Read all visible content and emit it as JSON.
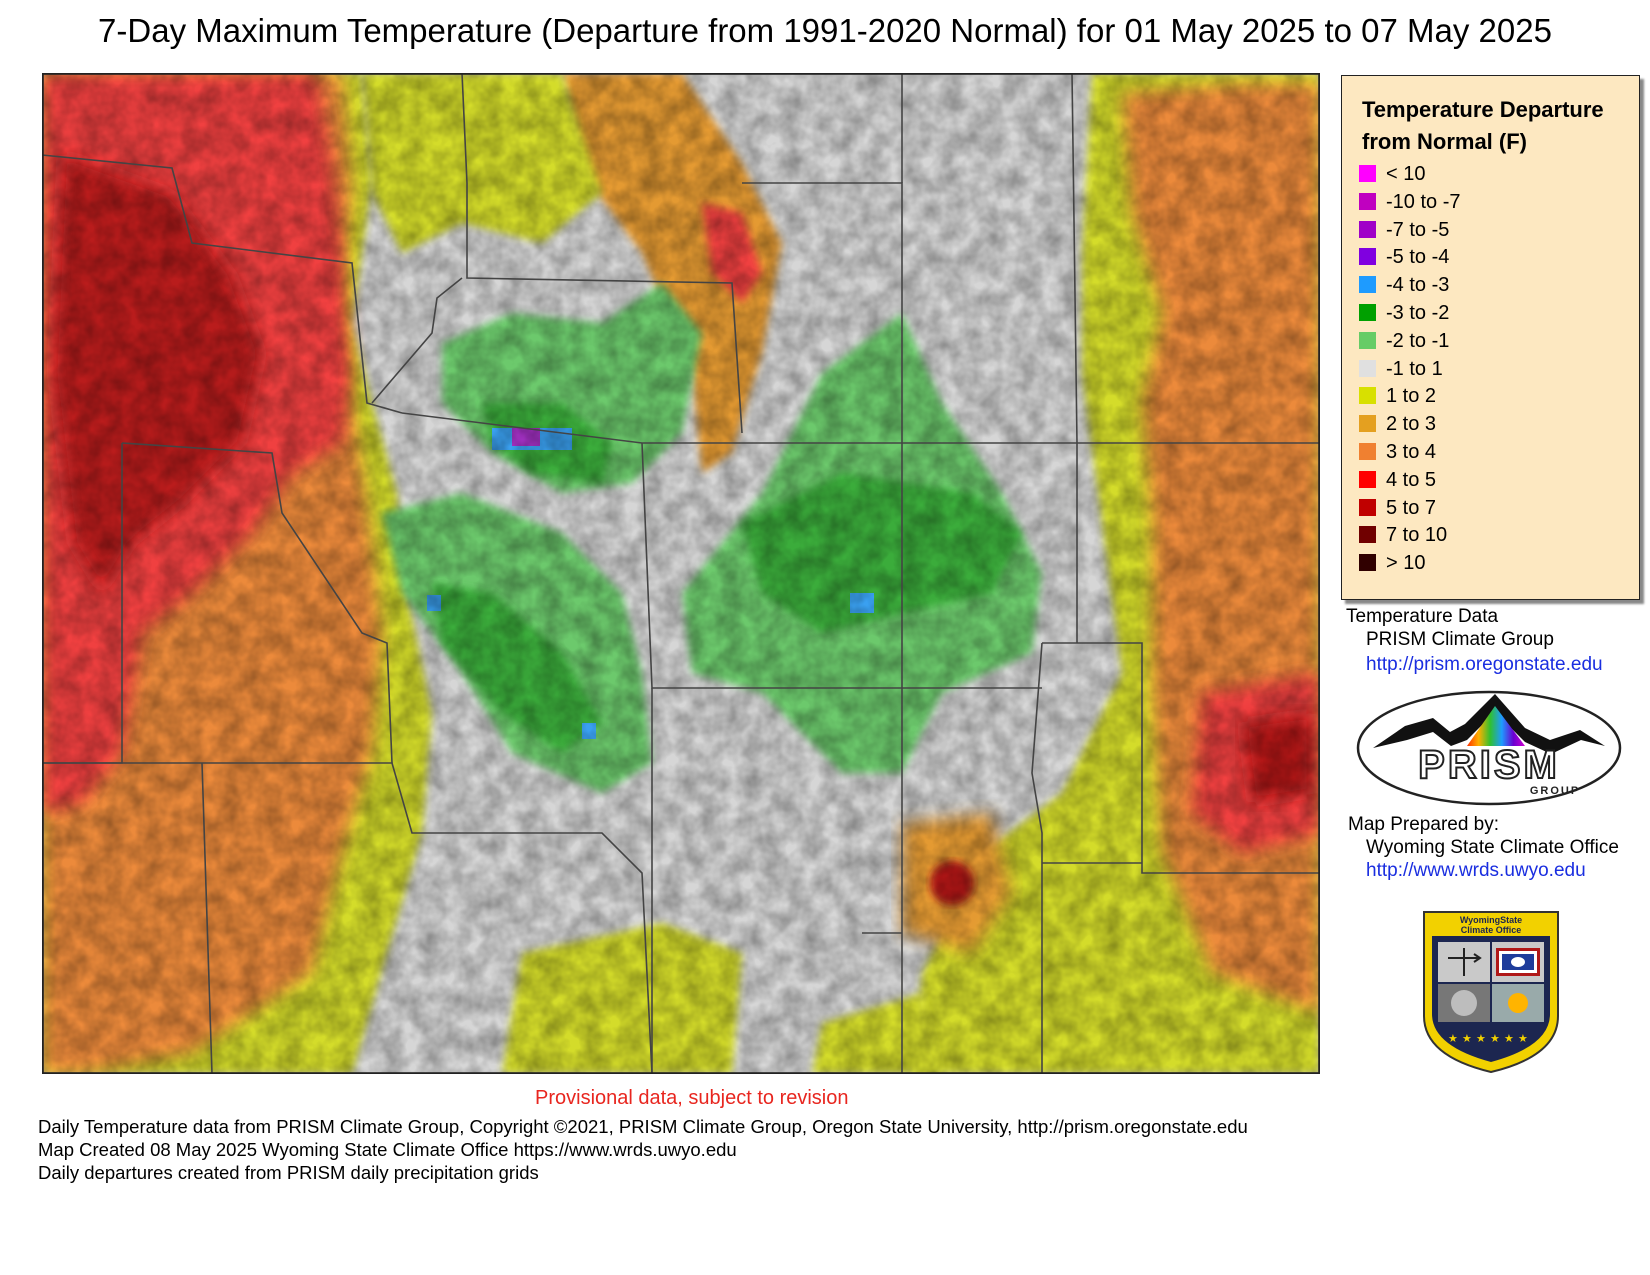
{
  "title": "7-Day Maximum Temperature (Departure from 1991-2020 Normal) for 01 May 2025 to 07 May 2025",
  "legend": {
    "title_line1": "Temperature Departure",
    "title_line2": "from Normal (F)",
    "items": [
      {
        "label": "< 10",
        "color": "#ff00ff"
      },
      {
        "label": "-10 to -7",
        "color": "#c000c0"
      },
      {
        "label": "-7 to -5",
        "color": "#a000c8"
      },
      {
        "label": "-5 to -4",
        "color": "#8000e0"
      },
      {
        "label": "-4 to -3",
        "color": "#1e9bff"
      },
      {
        "label": "-3 to -2",
        "color": "#00a000"
      },
      {
        "label": "-2 to -1",
        "color": "#66cc66"
      },
      {
        "label": "-1 to 1",
        "color": "#e0e0e0"
      },
      {
        "label": "1 to 2",
        "color": "#d8e000"
      },
      {
        "label": "2 to 3",
        "color": "#e4a020"
      },
      {
        "label": "3 to 4",
        "color": "#f08030"
      },
      {
        "label": "4 to 5",
        "color": "#ff0000"
      },
      {
        "label": "5 to 7",
        "color": "#c00000"
      },
      {
        "label": "7 to 10",
        "color": "#700000"
      },
      {
        "label": "> 10",
        "color": "#300000"
      }
    ]
  },
  "credits": {
    "data_heading": "Temperature Data",
    "data_org": "PRISM Climate Group",
    "data_url": "http://prism.oregonstate.edu",
    "prepared_heading": "Map Prepared by:",
    "prepared_org": "Wyoming State Climate Office",
    "prepared_url": "http://www.wrds.uwyo.edu"
  },
  "logos": {
    "prism_word": "PRISM",
    "prism_sub": "GROUP",
    "badge_line1": "WyomingState",
    "badge_line2": "Climate Office"
  },
  "provisional": "Provisional data, subject to revision",
  "footer": [
    "Daily Temperature data from PRISM Climate Group, Copyright ©2021, PRISM Climate Group, Oregon State University, http://prism.oregonstate.edu",
    "Map Created 08 May 2025 Wyoming State Climate Office https://www.wrds.uwyo.edu",
    "Daily departures created from PRISM daily precipitation grids"
  ]
}
